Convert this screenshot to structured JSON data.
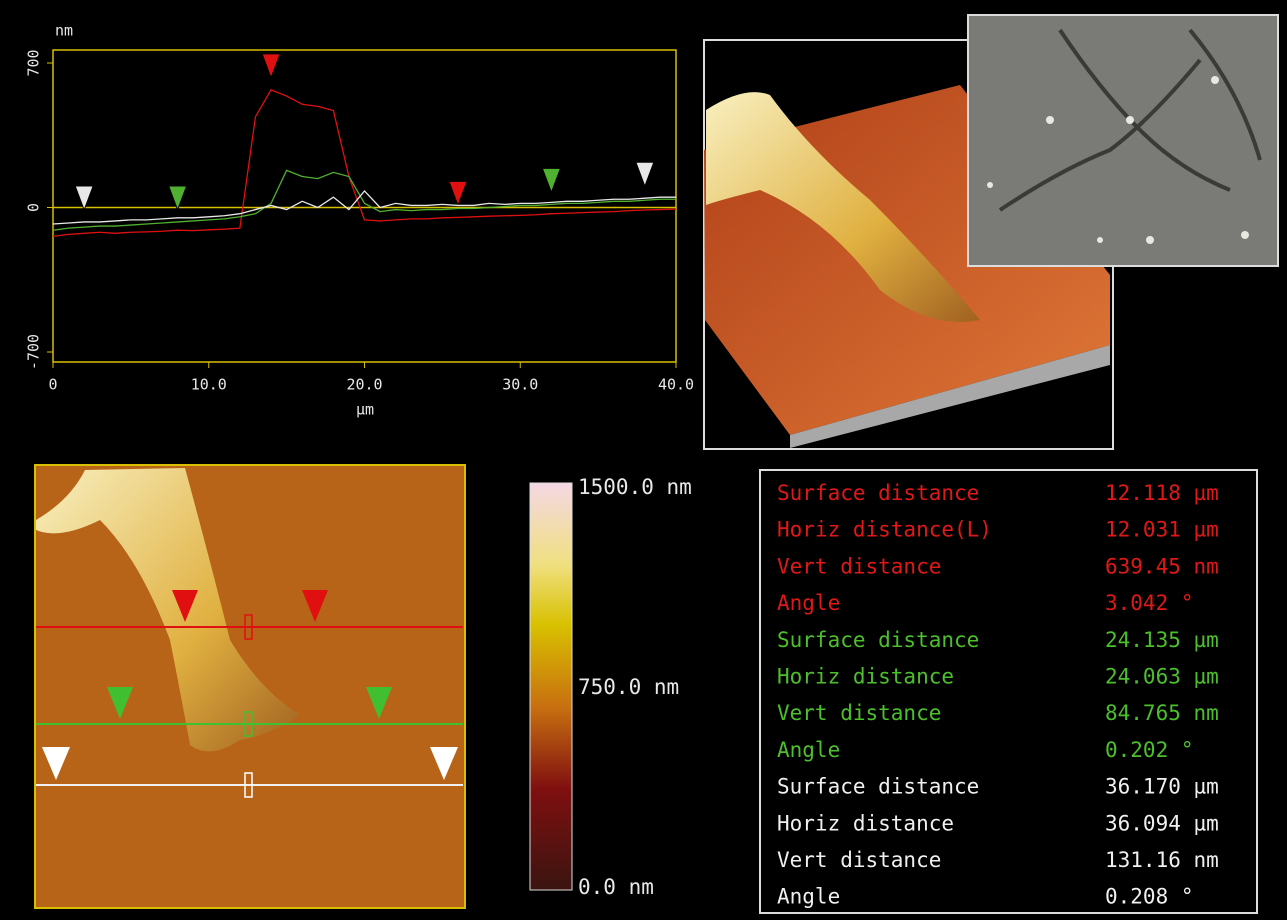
{
  "chart_data": {
    "type": "line",
    "y_label": "nm",
    "x_label": "µm",
    "x": [
      0,
      1,
      2,
      3,
      4,
      5,
      6,
      7,
      8,
      9,
      10,
      11,
      12,
      13,
      14,
      15,
      16,
      17,
      18,
      19,
      20,
      21,
      22,
      23,
      24,
      25,
      26,
      27,
      28,
      29,
      30,
      31,
      32,
      33,
      34,
      35,
      36,
      37,
      38,
      39,
      40
    ],
    "series": [
      {
        "color": "#e01010",
        "markers": [
          14,
          26
        ],
        "values": [
          -140,
          -130,
          -125,
          -120,
          -125,
          -120,
          -118,
          -115,
          -110,
          -112,
          -108,
          -105,
          -100,
          440,
          570,
          540,
          500,
          490,
          470,
          150,
          -60,
          -65,
          -60,
          -55,
          -55,
          -50,
          -48,
          -45,
          -42,
          -40,
          -38,
          -35,
          -30,
          -28,
          -25,
          -22,
          -20,
          -15,
          -12,
          -10,
          -8
        ]
      },
      {
        "color": "#50b030",
        "markers": [
          8,
          32
        ],
        "values": [
          -110,
          -100,
          -95,
          -90,
          -90,
          -85,
          -80,
          -75,
          -70,
          -65,
          -60,
          -55,
          -45,
          -30,
          20,
          180,
          150,
          140,
          170,
          150,
          20,
          -20,
          -10,
          -15,
          -10,
          -10,
          -5,
          -5,
          0,
          5,
          10,
          10,
          15,
          20,
          20,
          25,
          30,
          30,
          35,
          40,
          40
        ]
      },
      {
        "color": "#e8e8e8",
        "markers": [
          2,
          38
        ],
        "values": [
          -80,
          -75,
          -70,
          -70,
          -65,
          -60,
          -60,
          -55,
          -50,
          -50,
          -45,
          -40,
          -30,
          -10,
          10,
          -10,
          30,
          0,
          50,
          -10,
          80,
          0,
          20,
          10,
          10,
          15,
          10,
          10,
          20,
          15,
          20,
          20,
          25,
          30,
          30,
          35,
          40,
          40,
          45,
          50,
          50
        ]
      }
    ],
    "xlim": [
      0,
      40
    ],
    "ylim": [
      -700,
      700
    ],
    "xticks": [
      0,
      {
        "value": 10,
        "label": "10.0"
      },
      {
        "value": 20,
        "label": "20.0"
      },
      {
        "value": 30,
        "label": "30.0"
      },
      {
        "value": 40,
        "label": "40.0"
      }
    ],
    "yticks": [
      -700,
      0,
      700
    ]
  },
  "colorbar": {
    "labels": [
      "1500.0 nm",
      "750.0 nm",
      "0.0 nm"
    ]
  },
  "measurements": [
    {
      "color": "#e01818",
      "rows": [
        [
          "Surface distance",
          "12.118 µm"
        ],
        [
          "Horiz distance(L)",
          "12.031 µm"
        ],
        [
          "Vert distance",
          "639.45 nm"
        ],
        [
          "Angle",
          "3.042 °"
        ]
      ]
    },
    {
      "color": "#4cc02c",
      "rows": [
        [
          "Surface distance",
          "24.135 µm"
        ],
        [
          "Horiz distance",
          "24.063 µm"
        ],
        [
          "Vert distance",
          "84.765 nm"
        ],
        [
          "Angle",
          "0.202 °"
        ]
      ]
    },
    {
      "color": "#f0f0f0",
      "rows": [
        [
          "Surface distance",
          "36.170 µm"
        ],
        [
          "Horiz distance",
          "36.094 µm"
        ],
        [
          "Vert distance",
          "131.16 nm"
        ],
        [
          "Angle",
          "0.208 °"
        ]
      ]
    }
  ]
}
